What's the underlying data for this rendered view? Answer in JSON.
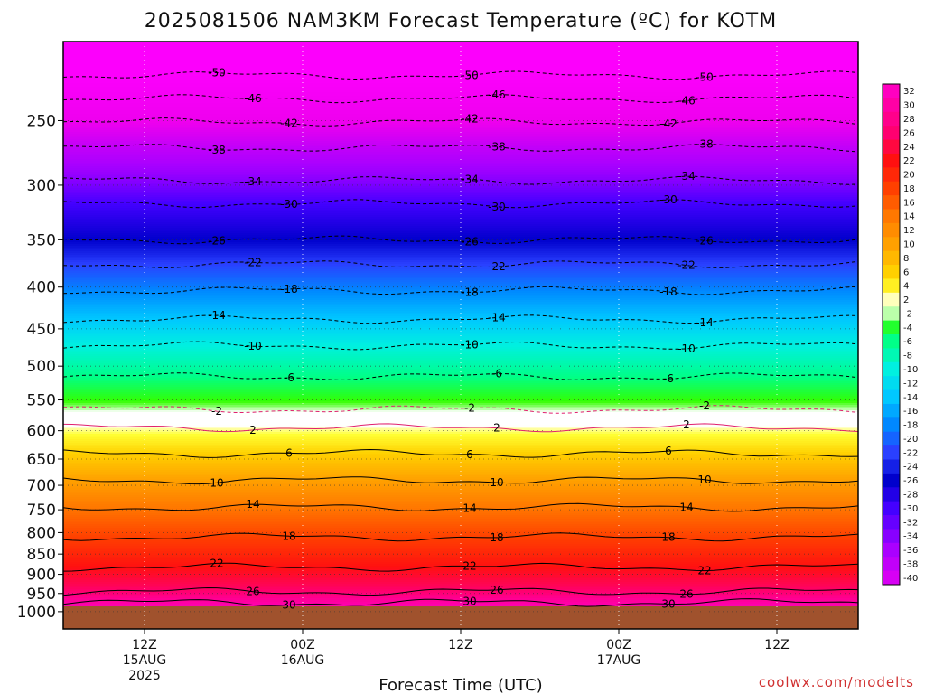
{
  "chart_data": {
    "type": "heatmap",
    "title": "2025081506 NAM3KM Forecast Temperature (ºC) for KOTM",
    "xlabel": "Forecast Time (UTC)",
    "credit": "coolwx.com/modelts",
    "y_scale": "log-pressure",
    "y_range_hpa": [
      200,
      1050
    ],
    "y_ticks": [
      "250",
      "300",
      "350",
      "400",
      "450",
      "500",
      "550",
      "600",
      "650",
      "700",
      "750",
      "800",
      "850",
      "900",
      "950",
      "1000"
    ],
    "x_ticks": [
      {
        "lines": [
          "12Z",
          "15AUG",
          "2025"
        ]
      },
      {
        "lines": [
          "00Z",
          "16AUG"
        ]
      },
      {
        "lines": [
          "12Z"
        ]
      },
      {
        "lines": [
          "00Z",
          "17AUG"
        ]
      },
      {
        "lines": [
          "12Z"
        ]
      }
    ],
    "colorbar_labels": [
      "32",
      "30",
      "28",
      "26",
      "24",
      "22",
      "20",
      "18",
      "16",
      "14",
      "12",
      "10",
      "8",
      "6",
      "4",
      "2",
      "-2",
      "-4",
      "-6",
      "-8",
      "-10",
      "-12",
      "-14",
      "-16",
      "-18",
      "-20",
      "-22",
      "-24",
      "-26",
      "-28",
      "-30",
      "-32",
      "-34",
      "-36",
      "-38",
      "-40"
    ],
    "contour_levels_labeled": [
      {
        "value": "-50",
        "p": 220
      },
      {
        "value": "-46",
        "p": 235
      },
      {
        "value": "-42",
        "p": 251
      },
      {
        "value": "-38",
        "p": 270
      },
      {
        "value": "-34",
        "p": 296
      },
      {
        "value": "-30",
        "p": 316
      },
      {
        "value": "-26",
        "p": 350
      },
      {
        "value": "-22",
        "p": 375
      },
      {
        "value": "-18",
        "p": 404
      },
      {
        "value": "-14",
        "p": 438
      },
      {
        "value": "-10",
        "p": 472
      },
      {
        "value": "-6",
        "p": 515
      },
      {
        "value": "-2",
        "p": 565
      },
      {
        "value": "2",
        "p": 595
      },
      {
        "value": "6",
        "p": 640
      },
      {
        "value": "10",
        "p": 690
      },
      {
        "value": "14",
        "p": 745
      },
      {
        "value": "18",
        "p": 810
      },
      {
        "value": "22",
        "p": 882
      },
      {
        "value": "26",
        "p": 945
      },
      {
        "value": "30",
        "p": 975
      }
    ],
    "surface": {
      "p": 985,
      "color": "#a0522d"
    },
    "grid": true
  }
}
